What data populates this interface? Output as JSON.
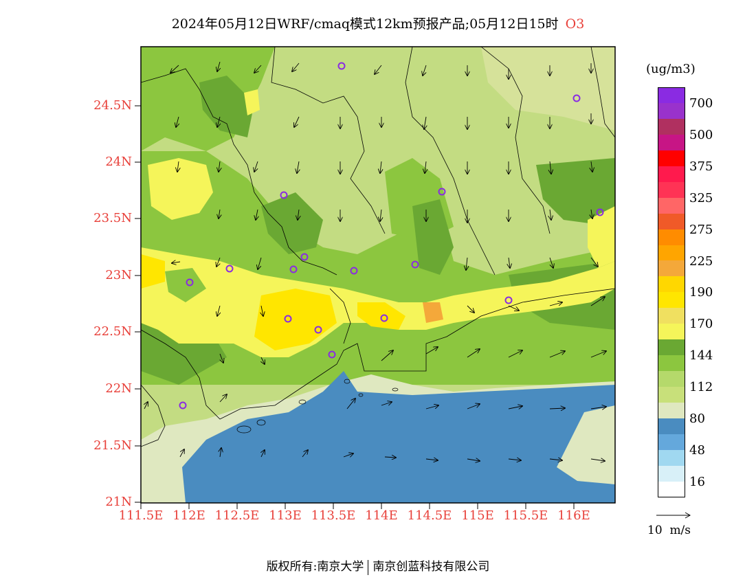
{
  "title": "2024年05月12日WRF/cmaq模式12km预报产品;05月12日15时",
  "pollutant": "O3",
  "units": "(ug/m3)",
  "y_ticks": [
    "24.5N",
    "24N",
    "23.5N",
    "23N",
    "22.5N",
    "22N",
    "21.5N",
    "21N"
  ],
  "x_ticks": [
    "111.5E",
    "112E",
    "112.5E",
    "113E",
    "113.5E",
    "114E",
    "114.5E",
    "115E",
    "115.5E",
    "116E"
  ],
  "colorbar": {
    "colors": [
      "#8a2be2",
      "#9932cc",
      "#b03060",
      "#c71585",
      "#ff0000",
      "#ff1a4d",
      "#ff3355",
      "#ff6666",
      "#f05a28",
      "#ff8c00",
      "#ffa500",
      "#f4a83a",
      "#ffd700",
      "#ffe600",
      "#f0e060",
      "#f5f55a",
      "#6aa833",
      "#8cc63f",
      "#b5d96b",
      "#c8e07a",
      "#dfe8c0",
      "#4a8cc0",
      "#64a8dc",
      "#a0d8f0",
      "#d8f0f8",
      "#ffffff"
    ],
    "labels": [
      "700",
      "500",
      "375",
      "325",
      "275",
      "225",
      "190",
      "170",
      "144",
      "112",
      "80",
      "48",
      "16"
    ]
  },
  "wind_legend": "10  m/s",
  "footer": {
    "left": "版权所有:南京大学",
    "right": "南京创蓝科技有限公司"
  },
  "colors": {
    "land_light": "#c3dc82",
    "land_mid": "#8cc63f",
    "land_dark": "#6aa833",
    "yellow": "#f5f55a",
    "gold": "#ffe600",
    "sea": "#4a8cc0",
    "pale": "#dfe8c0",
    "axis_red": "#e8403a",
    "station": "#8a2be2"
  }
}
